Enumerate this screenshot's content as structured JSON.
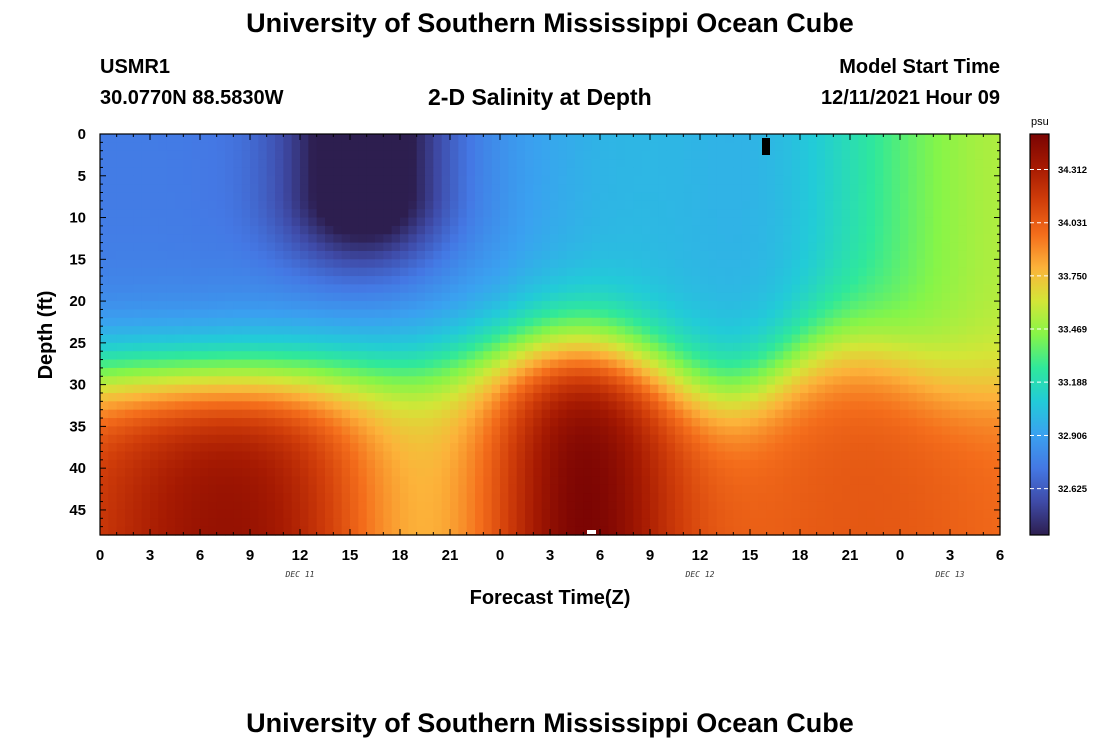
{
  "header": {
    "title": "University of Southern Mississippi Ocean Cube",
    "station_id": "USMR1",
    "station_coords": "30.0770N  88.5830W",
    "plot_title": "2-D Salinity at Depth",
    "model_start_label": "Model Start Time",
    "model_start_value": "12/11/2021 Hour 09"
  },
  "footer": {
    "title": "University of Southern Mississippi Ocean Cube"
  },
  "chart_data": {
    "type": "heatmap",
    "title": "2-D Salinity at Depth",
    "xlabel": "Forecast Time(Z)",
    "ylabel": "Depth (ft)",
    "x_ticks": [
      "0",
      "3",
      "6",
      "9",
      "12",
      "15",
      "18",
      "21",
      "0",
      "3",
      "6",
      "9",
      "12",
      "15",
      "18",
      "21",
      "0",
      "3",
      "6"
    ],
    "x_range_hours": [
      0,
      54
    ],
    "y_ticks": [
      0,
      5,
      10,
      15,
      20,
      25,
      30,
      35,
      40,
      45
    ],
    "y_range": [
      0,
      48
    ],
    "y_inverted": true,
    "date_labels": [
      {
        "text": "DEC 11",
        "at_hour": 12
      },
      {
        "text": "DEC 12",
        "at_hour": 36
      },
      {
        "text": "DEC 13",
        "at_hour": 51
      }
    ],
    "colorbar": {
      "unit": "psu",
      "min": 32.38,
      "max": 34.5,
      "ticks": [
        34.312,
        34.031,
        33.75,
        33.469,
        33.188,
        32.906,
        32.625
      ],
      "tick_labels": [
        "34.312",
        "34.031",
        "33.750",
        "33.469",
        "33.188",
        "32.906",
        "32.625"
      ],
      "colors": [
        "#2d1e4f",
        "#3f4ba8",
        "#4478e4",
        "#3aa1f0",
        "#22cbd8",
        "#2fe89b",
        "#86f548",
        "#d3e637",
        "#fcb33a",
        "#f46d1b",
        "#d13e0a",
        "#a61a02",
        "#7a0403"
      ]
    },
    "features": [
      {
        "label": "fresher surface water (dark core)",
        "center_hour": 16,
        "depth_range": [
          0,
          16
        ],
        "salinity": 32.4
      },
      {
        "label": "high salinity bottom dome",
        "center_hour": 29,
        "depth_range": [
          25,
          48
        ],
        "salinity": 34.5
      }
    ]
  }
}
